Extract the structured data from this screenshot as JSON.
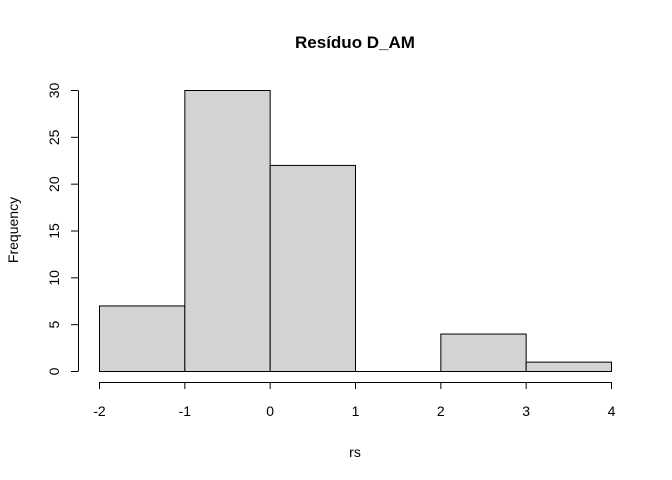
{
  "chart_data": {
    "type": "bar",
    "title": "Resíduo  D_AM",
    "xlabel": "rs",
    "ylabel": "Frequency",
    "bins": [
      {
        "x0": -2,
        "x1": -1,
        "count": 7
      },
      {
        "x0": -1,
        "x1": 0,
        "count": 30
      },
      {
        "x0": 0,
        "x1": 1,
        "count": 22
      },
      {
        "x0": 1,
        "x1": 2,
        "count": 0
      },
      {
        "x0": 2,
        "x1": 3,
        "count": 4
      },
      {
        "x0": 3,
        "x1": 4,
        "count": 1
      }
    ],
    "xlim": [
      -2,
      4
    ],
    "ylim": [
      0,
      30
    ],
    "x_ticks": [
      -2,
      -1,
      0,
      1,
      2,
      3,
      4
    ],
    "y_ticks": [
      0,
      5,
      10,
      15,
      20,
      25,
      30
    ],
    "x_tick_labels": [
      "-2",
      "-1",
      "0",
      "1",
      "2",
      "3",
      "4"
    ],
    "y_tick_labels": [
      "0",
      "5",
      "10",
      "15",
      "20",
      "25",
      "30"
    ],
    "bar_color": "#d3d3d3",
    "edge_color": "#000000",
    "grid": false,
    "legend": "none"
  }
}
